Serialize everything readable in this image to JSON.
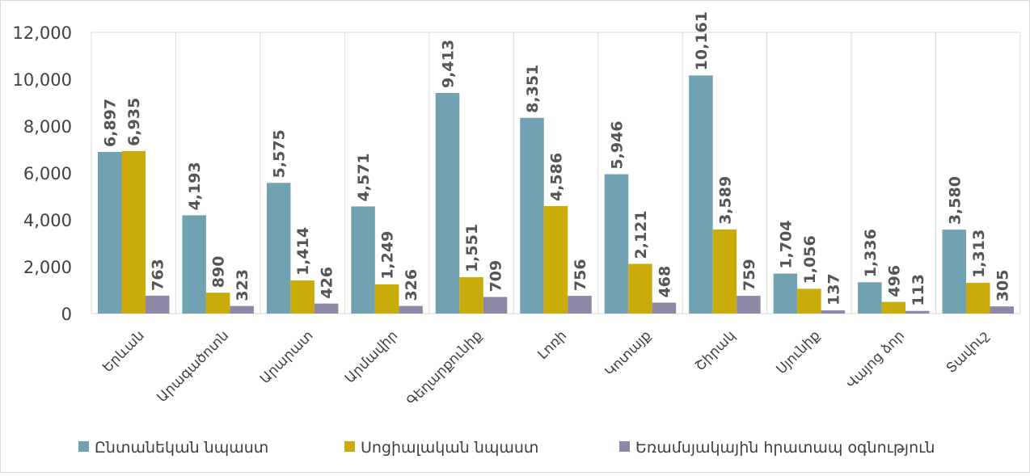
{
  "chart_data": {
    "type": "bar",
    "categories": [
      "Երևան",
      "Արագածոտն",
      "Արարատ",
      "Արմավիր",
      "Գեղարքունիք",
      "Լոռի",
      "Կոտայք",
      "Շիրակ",
      "Սյունիք",
      "Վայոց ձոր",
      "Տավուշ"
    ],
    "series": [
      {
        "name": "Ընտանեկան նպաստ",
        "color": "#71a2b2",
        "values": [
          6897,
          4193,
          5575,
          4571,
          9413,
          8351,
          5946,
          10161,
          1704,
          1336,
          3580
        ],
        "value_labels": [
          "6,897",
          "4,193",
          "5,575",
          "4,571",
          "9,413",
          "8,351",
          "5,946",
          "10,161",
          "1,704",
          "1,336",
          "3,580"
        ]
      },
      {
        "name": "Սոցիալական նպաստ",
        "color": "#c9ab0a",
        "values": [
          6935,
          890,
          1414,
          1249,
          1551,
          4586,
          2121,
          3589,
          1056,
          496,
          1313
        ],
        "value_labels": [
          "6,935",
          "890",
          "1,414",
          "1,249",
          "1,551",
          "4,586",
          "2,121",
          "3,589",
          "1,056",
          "496",
          "1,313"
        ]
      },
      {
        "name": "Եռամսյակային հրատապ օգնություն",
        "color": "#8e88a6",
        "values": [
          763,
          323,
          426,
          326,
          709,
          756,
          468,
          759,
          137,
          113,
          305
        ],
        "value_labels": [
          "763",
          "323",
          "426",
          "326",
          "709",
          "756",
          "468",
          "759",
          "137",
          "113",
          "305"
        ]
      }
    ],
    "ylim": [
      0,
      12000
    ],
    "yticks": [
      0,
      {
        "value": 2000,
        "label": "2,000"
      },
      {
        "value": 4000,
        "label": "4,000"
      },
      {
        "value": 6000,
        "label": "6,000"
      },
      {
        "value": 8000,
        "label": "8,000"
      },
      {
        "value": 10000,
        "label": "10,000"
      },
      {
        "value": 12000,
        "label": "12,000"
      }
    ],
    "legend": "bottom"
  }
}
